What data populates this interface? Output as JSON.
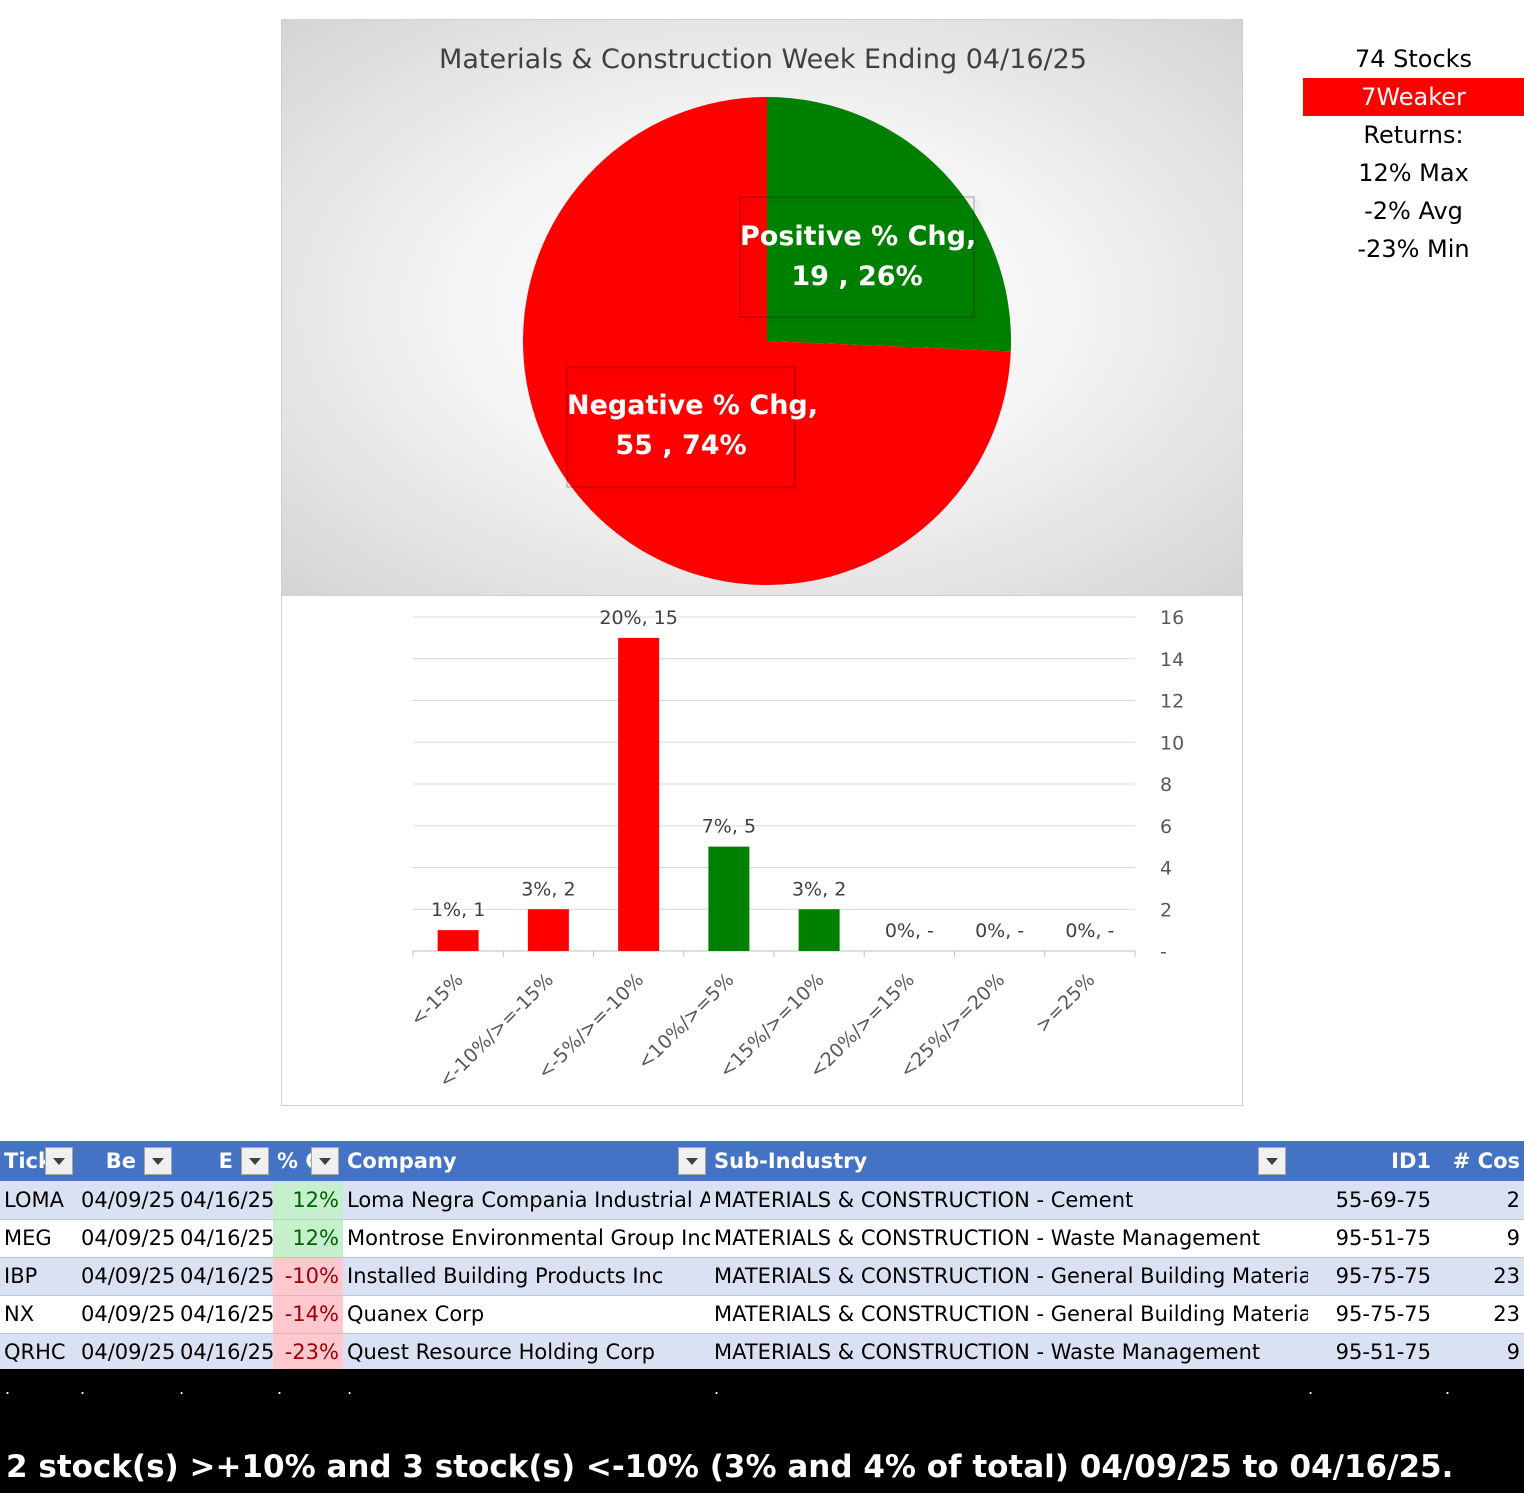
{
  "chart_data": [
    {
      "type": "pie",
      "title": "Materials & Construction Week Ending 04/16/25",
      "slices": [
        {
          "name": "Positive % Chg",
          "value": 19,
          "percent": "26%",
          "color": "#008000"
        },
        {
          "name": "Negative % Chg",
          "value": 55,
          "percent": "74%",
          "color": "#ff0000"
        }
      ]
    },
    {
      "type": "bar",
      "categories": [
        "<-15%",
        "<-10%/>=-15%",
        "<-5%/>=-10%",
        "<10%/>=5%",
        "<15%/>=10%",
        "<20%/>=15%",
        "<25%/>=20%",
        ">=25%"
      ],
      "values": [
        1,
        2,
        15,
        5,
        2,
        0,
        0,
        0
      ],
      "data_labels": [
        "1%,  1",
        "3%,  2",
        "20%,  15",
        "7%,  5",
        "3%,  2",
        "0%,  -",
        "0%,  -",
        "0%,  -"
      ],
      "colors": [
        "#ff0000",
        "#ff0000",
        "#ff0000",
        "#008000",
        "#008000",
        "#008000",
        "#008000",
        "#008000"
      ],
      "ylim": [
        0,
        16
      ],
      "yticks": [
        "-",
        "2",
        "4",
        "6",
        "8",
        "10",
        "12",
        "14",
        "16"
      ],
      "y_axis_side": "right",
      "grid": true
    }
  ],
  "stats": {
    "stocks": "74 Stocks",
    "weaker": "7Weaker",
    "returns": "Returns:",
    "max": "12% Max",
    "avg": "-2% Avg",
    "min": "-23% Min"
  },
  "table": {
    "headers": [
      "Tick",
      "Be",
      "E",
      "% C",
      "Company",
      "Sub-Industry",
      "ID1",
      "# Cos"
    ],
    "rows": [
      [
        "LOMA",
        "04/09/25",
        "04/16/25",
        "12%",
        "Loma Negra Compania Industrial Arg",
        "MATERIALS & CONSTRUCTION - Cement",
        "55-69-75",
        "2"
      ],
      [
        "MEG",
        "04/09/25",
        "04/16/25",
        "12%",
        "Montrose Environmental Group Inc",
        "MATERIALS & CONSTRUCTION - Waste Management",
        "95-51-75",
        "9"
      ],
      [
        "IBP",
        "04/09/25",
        "04/16/25",
        "-10%",
        "Installed Building Products Inc",
        "MATERIALS & CONSTRUCTION - General Building Materials",
        "95-75-75",
        "23"
      ],
      [
        "NX",
        "04/09/25",
        "04/16/25",
        "-14%",
        "Quanex Corp",
        "MATERIALS & CONSTRUCTION - General Building Materials",
        "95-75-75",
        "23"
      ],
      [
        "QRHC",
        "04/09/25",
        "04/16/25",
        "-23%",
        "Quest Resource Holding Corp",
        "MATERIALS & CONSTRUCTION - Waste Management",
        "95-51-75",
        "9"
      ]
    ]
  },
  "footer": {
    "dots": [
      ".",
      ".",
      ".",
      ".",
      ".",
      ".",
      ".",
      "."
    ],
    "summary": "2 stock(s) >+10% and 3 stock(s) <-10% (3% and 4% of total) 04/09/25 to 04/16/25."
  }
}
